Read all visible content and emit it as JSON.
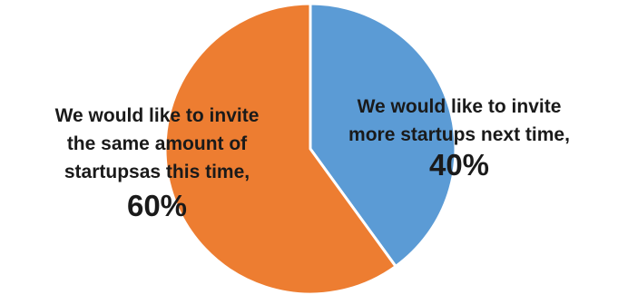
{
  "chart_data": {
    "type": "pie",
    "title": "",
    "slices": [
      {
        "label_lines": [
          "We would like to invite",
          "more startups next time,"
        ],
        "percent_label": "40%",
        "value": 40,
        "color": "#5B9BD5"
      },
      {
        "label_lines": [
          "We would like to invite",
          "the same amount of",
          "startupsas this time,"
        ],
        "percent_label": "60%",
        "value": 60,
        "color": "#ED7D31"
      }
    ],
    "start_angle": "12 o'clock",
    "direction": "clockwise",
    "legend": "none"
  }
}
